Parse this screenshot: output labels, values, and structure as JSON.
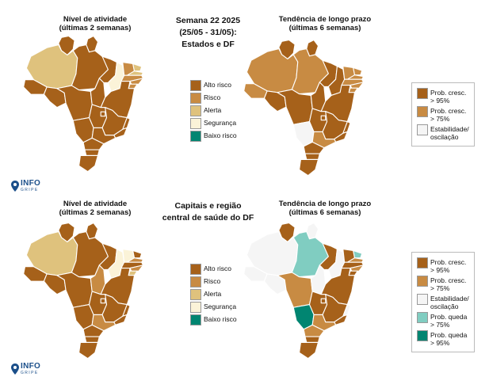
{
  "top": {
    "left_title": "Nível de atividade\n(últimas 2 semanas)",
    "center_title": "Semana 22 2025\n(25/05 - 31/05):\nEstados e DF",
    "right_title": "Tendência de longo prazo\n(últimas 6 semanas)"
  },
  "bottom": {
    "left_title": "Nível de atividade\n(últimas 2 semanas)",
    "center_title": "Capitais e região\ncentral de saúde do DF",
    "right_title": "Tendência de longo prazo\n(últimas 6 semanas)"
  },
  "activity_legend": [
    {
      "label": "Alto risco",
      "color": "#a6611a"
    },
    {
      "label": "Risco",
      "color": "#c88b43"
    },
    {
      "label": "Alerta",
      "color": "#dfc27d"
    },
    {
      "label": "Segurança",
      "color": "#fbf3d8"
    },
    {
      "label": "Baixo risco",
      "color": "#018571"
    }
  ],
  "trend_legend_top": [
    {
      "label": "Prob. cresc.\n> 95%",
      "color": "#a6611a"
    },
    {
      "label": "Prob. cresc.\n> 75%",
      "color": "#c88b43"
    },
    {
      "label": "Estabilidade/\noscilação",
      "color": "#f5f5f5"
    }
  ],
  "trend_legend_bottom": [
    {
      "label": "Prob. cresc.\n> 95%",
      "color": "#a6611a"
    },
    {
      "label": "Prob. cresc.\n> 75%",
      "color": "#c88b43"
    },
    {
      "label": "Estabilidade/\noscilação",
      "color": "#f5f5f5"
    },
    {
      "label": "Prob. queda\n> 75%",
      "color": "#80cdc1"
    },
    {
      "label": "Prob. queda\n> 95%",
      "color": "#018571"
    }
  ],
  "logo": {
    "main": "INFO",
    "sub": "GRIPE",
    "color": "#1b4f8a"
  },
  "maps": {
    "top_activity": {
      "AM": "#dfc27d",
      "RR": "#a6611a",
      "AP": "#a6611a",
      "PA": "#a6611a",
      "AC": "#a6611a",
      "RO": "#a6611a",
      "TO": "#a6611a",
      "MA": "#a6611a",
      "PI": "#fbf3d8",
      "CE": "#c88b43",
      "RN": "#dfc27d",
      "PB": "#dfc27d",
      "PE": "#c88b43",
      "AL": "#c88b43",
      "SE": "#c88b43",
      "BA": "#a6611a",
      "MT": "#a6611a",
      "GO": "#a6611a",
      "DF": "#a6611a",
      "MG": "#a6611a",
      "ES": "#a6611a",
      "RJ": "#a6611a",
      "SP": "#a6611a",
      "MS": "#a6611a",
      "PR": "#a6611a",
      "SC": "#a6611a",
      "RS": "#a6611a"
    },
    "top_trend": {
      "AM": "#c88b43",
      "RR": "#a6611a",
      "AP": "#a6611a",
      "PA": "#c88b43",
      "AC": "#c88b43",
      "RO": "#a6611a",
      "TO": "#a6611a",
      "MA": "#a6611a",
      "PI": "#a6611a",
      "CE": "#c88b43",
      "RN": "#c88b43",
      "PB": "#c88b43",
      "PE": "#c88b43",
      "AL": "#c88b43",
      "SE": "#c88b43",
      "BA": "#a6611a",
      "MT": "#a6611a",
      "GO": "#a6611a",
      "DF": "#a6611a",
      "MG": "#a6611a",
      "ES": "#a6611a",
      "RJ": "#a6611a",
      "SP": "#c88b43",
      "MS": "#f5f5f5",
      "PR": "#a6611a",
      "SC": "#a6611a",
      "RS": "#a6611a"
    },
    "bottom_activity": {
      "AM": "#dfc27d",
      "RR": "#a6611a",
      "AP": "#a6611a",
      "PA": "#a6611a",
      "AC": "#a6611a",
      "RO": "#a6611a",
      "TO": "#c88b43",
      "MA": "#a6611a",
      "PI": "#fbf3d8",
      "CE": "#fbf3d8",
      "RN": "#a6611a",
      "PB": "#c88b43",
      "PE": "#a6611a",
      "AL": "#c88b43",
      "SE": "#dfc27d",
      "BA": "#a6611a",
      "MT": "#a6611a",
      "GO": "#a6611a",
      "DF": "#a6611a",
      "MG": "#a6611a",
      "ES": "#a6611a",
      "RJ": "#a6611a",
      "SP": "#c88b43",
      "MS": "#a6611a",
      "PR": "#a6611a",
      "SC": "#a6611a",
      "RS": "#a6611a"
    },
    "bottom_trend": {
      "AM": "#f5f5f5",
      "RR": "#a6611a",
      "AP": "#f5f5f5",
      "PA": "#80cdc1",
      "AC": "#f5f5f5",
      "RO": "#f5f5f5",
      "TO": "#f5f5f5",
      "MA": "#a6611a",
      "PI": "#f5f5f5",
      "CE": "#a6611a",
      "RN": "#80cdc1",
      "PB": "#c88b43",
      "PE": "#a6611a",
      "AL": "#c88b43",
      "SE": "#a6611a",
      "BA": "#a6611a",
      "MT": "#c88b43",
      "GO": "#a6611a",
      "DF": "#a6611a",
      "MG": "#a6611a",
      "ES": "#f5f5f5",
      "RJ": "#a6611a",
      "SP": "#c88b43",
      "MS": "#018571",
      "PR": "#c88b43",
      "SC": "#a6611a",
      "RS": "#a6611a"
    }
  }
}
